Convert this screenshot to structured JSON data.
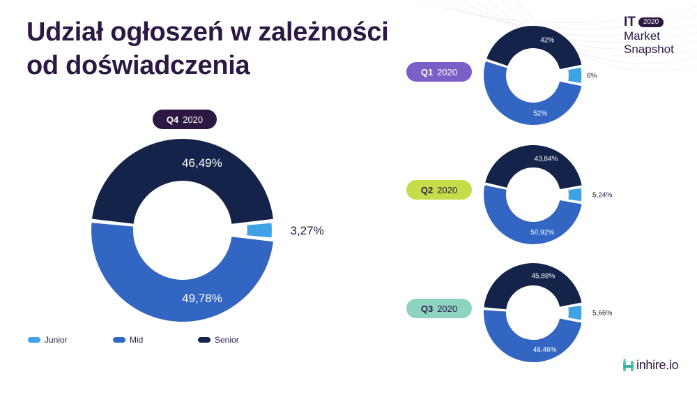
{
  "title": {
    "line1": "Udział ogłoszeń w zależności",
    "line2": "od doświadczenia"
  },
  "brand": {
    "it": "IT",
    "year": "2020",
    "line2": "Market",
    "line3": "Snapshot"
  },
  "logo": {
    "text": "inhire.io",
    "icon": "inhire-logo-icon"
  },
  "colors": {
    "junior": "#3ea2e6",
    "mid": "#3366c2",
    "senior": "#14234a",
    "title": "#2b1843"
  },
  "legend": [
    {
      "label": "Junior",
      "color": "#3ea2e6"
    },
    {
      "label": "Mid",
      "color": "#3366c2"
    },
    {
      "label": "Senior",
      "color": "#14234a"
    }
  ],
  "chart_data": [
    {
      "type": "pie",
      "style": "donut",
      "title": "Q4 2020",
      "quarter": "Q4",
      "year": "2020",
      "categories": [
        "Junior",
        "Mid",
        "Senior"
      ],
      "values": [
        3.27,
        49.78,
        46.49
      ],
      "labels": [
        "3,27%",
        "49,78%",
        "46,49%"
      ]
    },
    {
      "type": "pie",
      "style": "donut",
      "title": "Q1 2020",
      "quarter": "Q1",
      "year": "2020",
      "categories": [
        "Junior",
        "Mid",
        "Senior"
      ],
      "values": [
        6,
        52,
        42
      ],
      "labels": [
        "6%",
        "52%",
        "42%"
      ]
    },
    {
      "type": "pie",
      "style": "donut",
      "title": "Q2 2020",
      "quarter": "Q2",
      "year": "2020",
      "categories": [
        "Junior",
        "Mid",
        "Senior"
      ],
      "values": [
        5.24,
        50.92,
        43.84
      ],
      "labels": [
        "5,24%",
        "50,92%",
        "43,84%"
      ]
    },
    {
      "type": "pie",
      "style": "donut",
      "title": "Q3 2020",
      "quarter": "Q3",
      "year": "2020",
      "categories": [
        "Junior",
        "Mid",
        "Senior"
      ],
      "values": [
        5.66,
        48.46,
        45.88
      ],
      "labels": [
        "5,66%",
        "48,46%",
        "45,88%"
      ]
    }
  ]
}
